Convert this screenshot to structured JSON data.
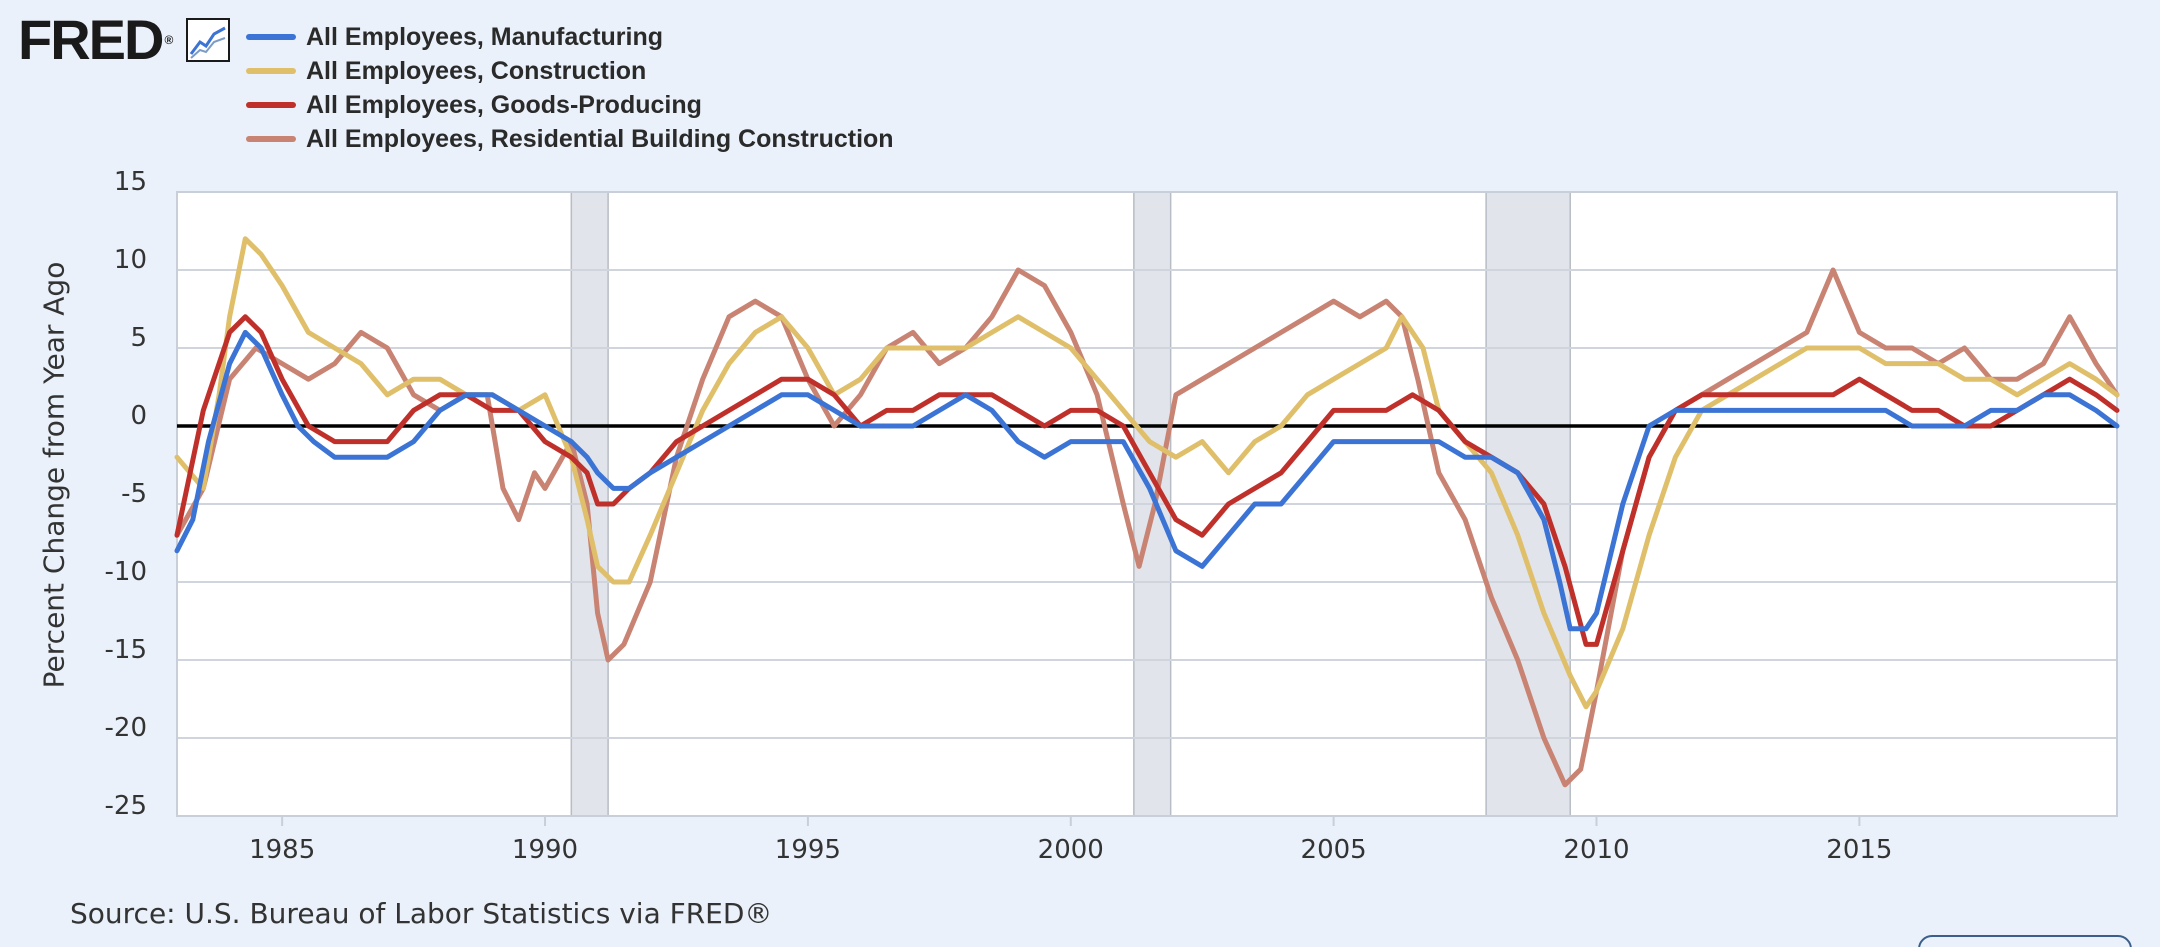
{
  "header": {
    "logo_text": "FRED",
    "logo_mark": "®",
    "chart_icon": "line-chart-icon"
  },
  "legend": [
    {
      "label": "All Employees, Manufacturing",
      "color": "#3b74d4"
    },
    {
      "label": "All Employees, Construction",
      "color": "#e0bf6a"
    },
    {
      "label": "All Employees, Goods-Producing",
      "color": "#c0302b"
    },
    {
      "label": "All Employees, Residential Building Construction",
      "color": "#c88373"
    }
  ],
  "source": "Source: U.S. Bureau of Labor Statistics via FRED®",
  "chart_data": {
    "type": "line",
    "title": "",
    "xlabel": "",
    "ylabel": "Percent Change from Year Ago",
    "xlim": [
      1983.0,
      2019.9
    ],
    "ylim": [
      -25,
      15
    ],
    "yticks": [
      15,
      10,
      5,
      0,
      -5,
      -10,
      -15,
      -20,
      -25
    ],
    "xticks": [
      1985,
      1990,
      1995,
      2000,
      2005,
      2010,
      2015
    ],
    "recessions": [
      [
        1990.5,
        1991.2
      ],
      [
        2001.2,
        2001.9
      ],
      [
        2007.9,
        2009.5
      ]
    ],
    "zero_line": 0,
    "series": [
      {
        "name": "All Employees, Residential Building Construction",
        "color": "#c88373",
        "x": [
          1983.0,
          1983.5,
          1984.0,
          1984.5,
          1985.0,
          1985.5,
          1986.0,
          1986.5,
          1987.0,
          1987.5,
          1988.0,
          1988.5,
          1988.9,
          1989.2,
          1989.5,
          1989.8,
          1990.0,
          1990.5,
          1990.8,
          1991.0,
          1991.2,
          1991.5,
          1992.0,
          1992.5,
          1993.0,
          1993.5,
          1994.0,
          1994.5,
          1995.0,
          1995.5,
          1996.0,
          1996.5,
          1997.0,
          1997.5,
          1998.0,
          1998.5,
          1999.0,
          1999.5,
          2000.0,
          2000.5,
          2001.0,
          2001.3,
          2001.6,
          2002.0,
          2002.5,
          2003.0,
          2003.5,
          2004.0,
          2004.5,
          2005.0,
          2005.5,
          2006.0,
          2006.3,
          2006.6,
          2007.0,
          2007.5,
          2008.0,
          2008.5,
          2009.0,
          2009.4,
          2009.7,
          2010.0,
          2010.5,
          2011.0,
          2011.5,
          2012.0,
          2012.5,
          2013.0,
          2013.5,
          2014.0,
          2014.5,
          2015.0,
          2015.5,
          2016.0,
          2016.5,
          2017.0,
          2017.5,
          2018.0,
          2018.5,
          2019.0,
          2019.5,
          2019.9
        ],
        "y": [
          -7,
          -4,
          3,
          5,
          4,
          3,
          4,
          6,
          5,
          2,
          1,
          2,
          2,
          -4,
          -6,
          -3,
          -4,
          -1,
          -5,
          -12,
          -15,
          -14,
          -10,
          -2,
          3,
          7,
          8,
          7,
          3,
          0,
          2,
          5,
          6,
          4,
          5,
          7,
          10,
          9,
          6,
          2,
          -5,
          -9,
          -5,
          2,
          3,
          4,
          5,
          6,
          7,
          8,
          7,
          8,
          7,
          3,
          -3,
          -6,
          -11,
          -15,
          -20,
          -23,
          -22,
          -17,
          -8,
          -2,
          1,
          2,
          3,
          4,
          5,
          6,
          10,
          6,
          5,
          5,
          4,
          5,
          3,
          3,
          4,
          7,
          4,
          2
        ]
      },
      {
        "name": "All Employees, Construction",
        "color": "#e0bf6a",
        "x": [
          1983.0,
          1983.5,
          1983.8,
          1984.0,
          1984.3,
          1984.6,
          1985.0,
          1985.5,
          1986.0,
          1986.5,
          1987.0,
          1987.5,
          1988.0,
          1988.5,
          1989.0,
          1989.5,
          1990.0,
          1990.5,
          1990.8,
          1991.0,
          1991.3,
          1991.6,
          1992.0,
          1992.5,
          1993.0,
          1993.5,
          1994.0,
          1994.5,
          1995.0,
          1995.5,
          1996.0,
          1996.5,
          1997.0,
          1997.5,
          1998.0,
          1998.5,
          1999.0,
          1999.5,
          2000.0,
          2000.5,
          2001.0,
          2001.5,
          2002.0,
          2002.5,
          2003.0,
          2003.5,
          2004.0,
          2004.5,
          2005.0,
          2005.5,
          2006.0,
          2006.3,
          2006.7,
          2007.0,
          2007.5,
          2008.0,
          2008.5,
          2009.0,
          2009.5,
          2009.8,
          2010.0,
          2010.5,
          2011.0,
          2011.5,
          2012.0,
          2012.5,
          2013.0,
          2013.5,
          2014.0,
          2014.5,
          2015.0,
          2015.5,
          2016.0,
          2016.5,
          2017.0,
          2017.5,
          2018.0,
          2018.5,
          2019.0,
          2019.5,
          2019.9
        ],
        "y": [
          -2,
          -4,
          2,
          7,
          12,
          11,
          9,
          6,
          5,
          4,
          2,
          3,
          3,
          2,
          2,
          1,
          2,
          -2,
          -6,
          -9,
          -10,
          -10,
          -7,
          -3,
          1,
          4,
          6,
          7,
          5,
          2,
          3,
          5,
          5,
          5,
          5,
          6,
          7,
          6,
          5,
          3,
          1,
          -1,
          -2,
          -1,
          -3,
          -1,
          0,
          2,
          3,
          4,
          5,
          7,
          5,
          1,
          -1,
          -3,
          -7,
          -12,
          -16,
          -18,
          -17,
          -13,
          -7,
          -2,
          1,
          2,
          3,
          4,
          5,
          5,
          5,
          4,
          4,
          4,
          3,
          3,
          2,
          3,
          4,
          3,
          2
        ]
      },
      {
        "name": "All Employees, Goods-Producing",
        "color": "#c0302b",
        "x": [
          1983.0,
          1983.5,
          1984.0,
          1984.3,
          1984.6,
          1985.0,
          1985.5,
          1986.0,
          1986.5,
          1987.0,
          1987.5,
          1988.0,
          1988.5,
          1989.0,
          1989.5,
          1990.0,
          1990.5,
          1990.8,
          1991.0,
          1991.3,
          1991.6,
          1992.0,
          1992.5,
          1993.0,
          1993.5,
          1994.0,
          1994.5,
          1995.0,
          1995.5,
          1996.0,
          1996.5,
          1997.0,
          1997.5,
          1998.0,
          1998.5,
          1999.0,
          1999.5,
          2000.0,
          2000.5,
          2001.0,
          2001.5,
          2002.0,
          2002.5,
          2003.0,
          2003.5,
          2004.0,
          2004.5,
          2005.0,
          2005.5,
          2006.0,
          2006.5,
          2007.0,
          2007.5,
          2008.0,
          2008.5,
          2009.0,
          2009.4,
          2009.8,
          2010.0,
          2010.5,
          2011.0,
          2011.5,
          2012.0,
          2012.5,
          2013.0,
          2013.5,
          2014.0,
          2014.5,
          2015.0,
          2015.5,
          2016.0,
          2016.5,
          2017.0,
          2017.5,
          2018.0,
          2018.5,
          2019.0,
          2019.5,
          2019.9
        ],
        "y": [
          -7,
          1,
          6,
          7,
          6,
          3,
          0,
          -1,
          -1,
          -1,
          1,
          2,
          2,
          1,
          1,
          -1,
          -2,
          -3,
          -5,
          -5,
          -4,
          -3,
          -1,
          0,
          1,
          2,
          3,
          3,
          2,
          0,
          1,
          1,
          2,
          2,
          2,
          1,
          0,
          1,
          1,
          0,
          -3,
          -6,
          -7,
          -5,
          -4,
          -3,
          -1,
          1,
          1,
          1,
          2,
          1,
          -1,
          -2,
          -3,
          -5,
          -9,
          -14,
          -14,
          -8,
          -2,
          1,
          2,
          2,
          2,
          2,
          2,
          2,
          3,
          2,
          1,
          1,
          0,
          0,
          1,
          2,
          3,
          2,
          1
        ]
      },
      {
        "name": "All Employees, Manufacturing",
        "color": "#3b74d4",
        "x": [
          1983.0,
          1983.3,
          1983.6,
          1984.0,
          1984.3,
          1984.6,
          1985.0,
          1985.3,
          1985.6,
          1986.0,
          1986.5,
          1987.0,
          1987.5,
          1988.0,
          1988.5,
          1989.0,
          1989.5,
          1990.0,
          1990.5,
          1990.8,
          1991.0,
          1991.3,
          1991.6,
          1992.0,
          1992.5,
          1993.0,
          1993.5,
          1994.0,
          1994.5,
          1995.0,
          1995.5,
          1996.0,
          1996.5,
          1997.0,
          1997.5,
          1998.0,
          1998.5,
          1999.0,
          1999.5,
          2000.0,
          2000.5,
          2001.0,
          2001.5,
          2002.0,
          2002.5,
          2003.0,
          2003.5,
          2004.0,
          2004.5,
          2005.0,
          2005.5,
          2006.0,
          2006.5,
          2007.0,
          2007.5,
          2008.0,
          2008.5,
          2009.0,
          2009.3,
          2009.5,
          2009.8,
          2010.0,
          2010.5,
          2011.0,
          2011.5,
          2012.0,
          2012.5,
          2013.0,
          2013.5,
          2014.0,
          2014.5,
          2015.0,
          2015.5,
          2016.0,
          2016.5,
          2017.0,
          2017.5,
          2018.0,
          2018.5,
          2019.0,
          2019.5,
          2019.9
        ],
        "y": [
          -8,
          -6,
          -1,
          4,
          6,
          5,
          2,
          0,
          -1,
          -2,
          -2,
          -2,
          -1,
          1,
          2,
          2,
          1,
          0,
          -1,
          -2,
          -3,
          -4,
          -4,
          -3,
          -2,
          -1,
          0,
          1,
          2,
          2,
          1,
          0,
          0,
          0,
          1,
          2,
          1,
          -1,
          -2,
          -1,
          -1,
          -1,
          -4,
          -8,
          -9,
          -7,
          -5,
          -5,
          -3,
          -1,
          -1,
          -1,
          -1,
          -1,
          -2,
          -2,
          -3,
          -6,
          -10,
          -13,
          -13,
          -12,
          -5,
          0,
          1,
          1,
          1,
          1,
          1,
          1,
          1,
          1,
          1,
          0,
          0,
          0,
          1,
          1,
          2,
          2,
          1,
          0
        ]
      }
    ]
  }
}
